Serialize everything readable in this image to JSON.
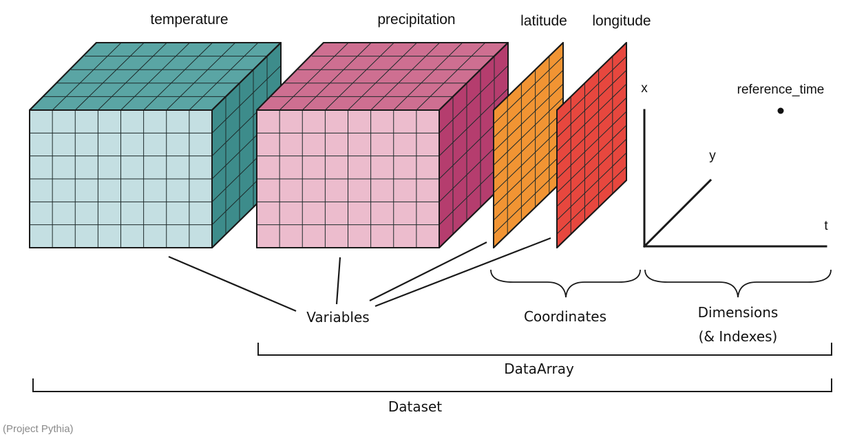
{
  "cubes": {
    "temperature": {
      "label": "temperature",
      "colors": {
        "front": "#c4dfe2",
        "top": "#5aa5a4",
        "side": "#3d8c8b"
      }
    },
    "precipitation": {
      "label": "precipitation",
      "colors": {
        "front": "#ecbccd",
        "top": "#ce6f91",
        "side": "#b53d6e"
      }
    }
  },
  "planes": {
    "latitude": {
      "label": "latitude",
      "color": "#f19433"
    },
    "longitude": {
      "label": "longitude",
      "color": "#e7473e"
    }
  },
  "dimensions": {
    "x_label": "x",
    "y_label": "y",
    "t_label": "t",
    "point_label": "reference_time"
  },
  "groups": {
    "variables": "Variables",
    "coordinates": "Coordinates",
    "dimensions_line1": "Dimensions",
    "dimensions_line2": "(& Indexes)",
    "dataarray": "DataArray",
    "dataset": "Dataset"
  },
  "credit": "(Project Pythia)",
  "colors": {
    "line": "#1a1a1a",
    "grid": "#1d2a2a"
  }
}
